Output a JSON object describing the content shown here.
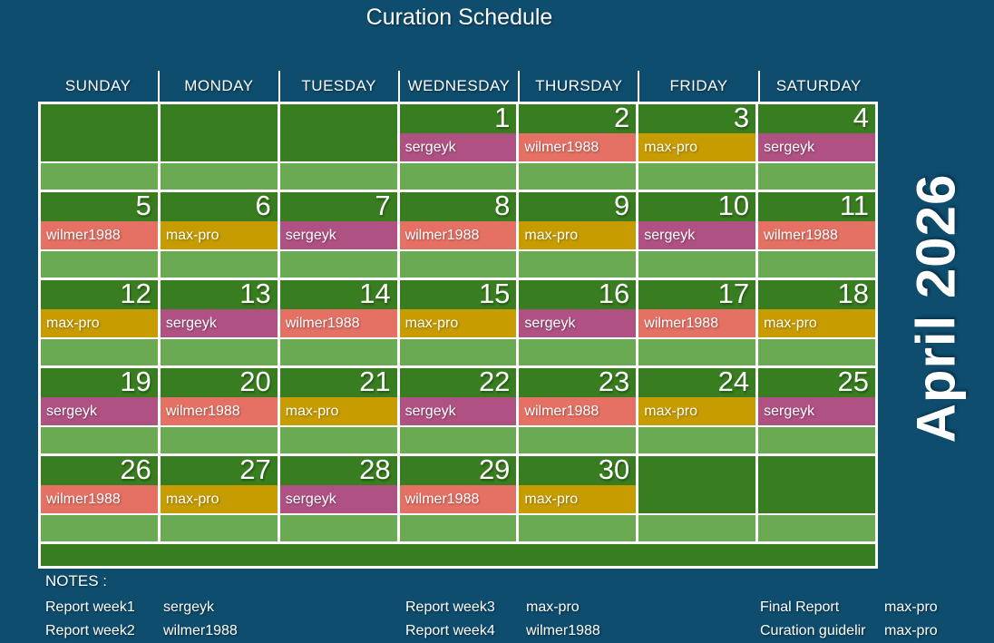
{
  "title": "Curation Schedule",
  "month_label": "April 2026",
  "colors": {
    "background": "#0e4d6e",
    "cell_dark_green": "#387d1f",
    "cell_light_green": "#6aaa52",
    "grid_line": "#ffffff",
    "text": "#ffffff",
    "assignees": {
      "sergeyk": "#b05183",
      "wilmer1988": "#e57064",
      "max-pro": "#c79c00"
    }
  },
  "weekdays": [
    "SUNDAY",
    "MONDAY",
    "TUESDAY",
    "WEDNESDAY",
    "THURSDAY",
    "FRIDAY",
    "SATURDAY"
  ],
  "weeks": [
    [
      null,
      null,
      null,
      {
        "date": "1",
        "assignee": "sergeyk"
      },
      {
        "date": "2",
        "assignee": "wilmer1988"
      },
      {
        "date": "3",
        "assignee": "max-pro"
      },
      {
        "date": "4",
        "assignee": "sergeyk"
      }
    ],
    [
      {
        "date": "5",
        "assignee": "wilmer1988"
      },
      {
        "date": "6",
        "assignee": "max-pro"
      },
      {
        "date": "7",
        "assignee": "sergeyk"
      },
      {
        "date": "8",
        "assignee": "wilmer1988"
      },
      {
        "date": "9",
        "assignee": "max-pro"
      },
      {
        "date": "10",
        "assignee": "sergeyk"
      },
      {
        "date": "11",
        "assignee": "wilmer1988"
      }
    ],
    [
      {
        "date": "12",
        "assignee": "max-pro"
      },
      {
        "date": "13",
        "assignee": "sergeyk"
      },
      {
        "date": "14",
        "assignee": "wilmer1988"
      },
      {
        "date": "15",
        "assignee": "max-pro"
      },
      {
        "date": "16",
        "assignee": "sergeyk"
      },
      {
        "date": "17",
        "assignee": "wilmer1988"
      },
      {
        "date": "18",
        "assignee": "max-pro"
      }
    ],
    [
      {
        "date": "19",
        "assignee": "sergeyk"
      },
      {
        "date": "20",
        "assignee": "wilmer1988"
      },
      {
        "date": "21",
        "assignee": "max-pro"
      },
      {
        "date": "22",
        "assignee": "sergeyk"
      },
      {
        "date": "23",
        "assignee": "wilmer1988"
      },
      {
        "date": "24",
        "assignee": "max-pro"
      },
      {
        "date": "25",
        "assignee": "sergeyk"
      }
    ],
    [
      {
        "date": "26",
        "assignee": "wilmer1988"
      },
      {
        "date": "27",
        "assignee": "max-pro"
      },
      {
        "date": "28",
        "assignee": "sergeyk"
      },
      {
        "date": "29",
        "assignee": "wilmer1988"
      },
      {
        "date": "30",
        "assignee": "max-pro"
      },
      null,
      null
    ]
  ],
  "notes": {
    "heading": "NOTES :",
    "columns": [
      {
        "items": [
          {
            "label": "Report week1",
            "value": "sergeyk"
          },
          {
            "label": "Report week2",
            "value": "wilmer1988"
          }
        ]
      },
      {
        "items": [
          {
            "label": "Report week3",
            "value": "max-pro"
          },
          {
            "label": "Report week4",
            "value": "wilmer1988"
          }
        ]
      },
      {
        "items": [
          {
            "label": "Final Report",
            "value": "max-pro"
          },
          {
            "label": "Curation guidelir",
            "value": "max-pro"
          }
        ]
      }
    ]
  }
}
